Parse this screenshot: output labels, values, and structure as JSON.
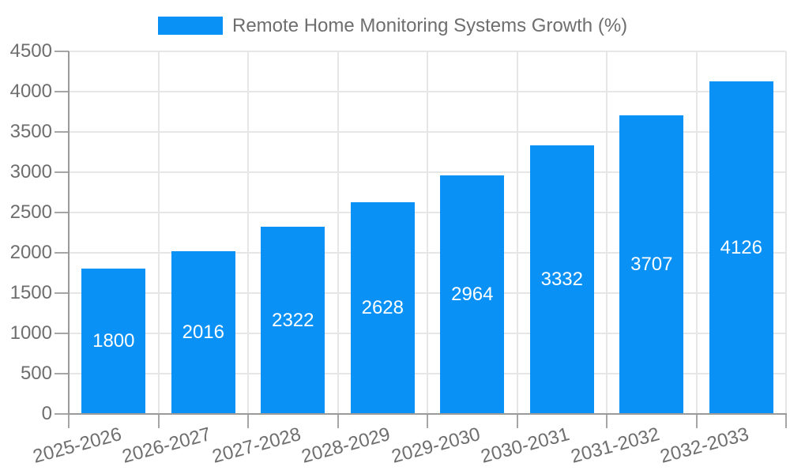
{
  "legend": {
    "label": "Remote Home Monitoring Systems Growth (%)"
  },
  "chart_data": {
    "type": "bar",
    "title": "Remote Home Monitoring Systems Growth (%)",
    "categories": [
      "2025-2026",
      "2026-2027",
      "2027-2028",
      "2028-2029",
      "2029-2030",
      "2030-2031",
      "2031-2032",
      "2032-2033"
    ],
    "values": [
      1800,
      2016,
      2322,
      2628,
      2964,
      3332,
      3707,
      4126
    ],
    "series": [
      {
        "name": "Remote Home Monitoring Systems Growth (%)",
        "values": [
          1800,
          2016,
          2322,
          2628,
          2964,
          3332,
          3707,
          4126
        ]
      }
    ],
    "xlabel": "",
    "ylabel": "",
    "ylim": [
      0,
      4500
    ],
    "ytick_values": [
      0,
      500,
      1000,
      1500,
      2000,
      2500,
      3000,
      3500,
      4000,
      4500
    ],
    "grid": true,
    "legend_position": "top",
    "bar_label_position": "inside-center",
    "colors": {
      "bar": "#0a91f5",
      "bar_value_label": "#ffffff",
      "axis_text": "#6e6e6e",
      "axis_line": "#9a9a9a",
      "gridline": "#e6e6e6"
    }
  }
}
